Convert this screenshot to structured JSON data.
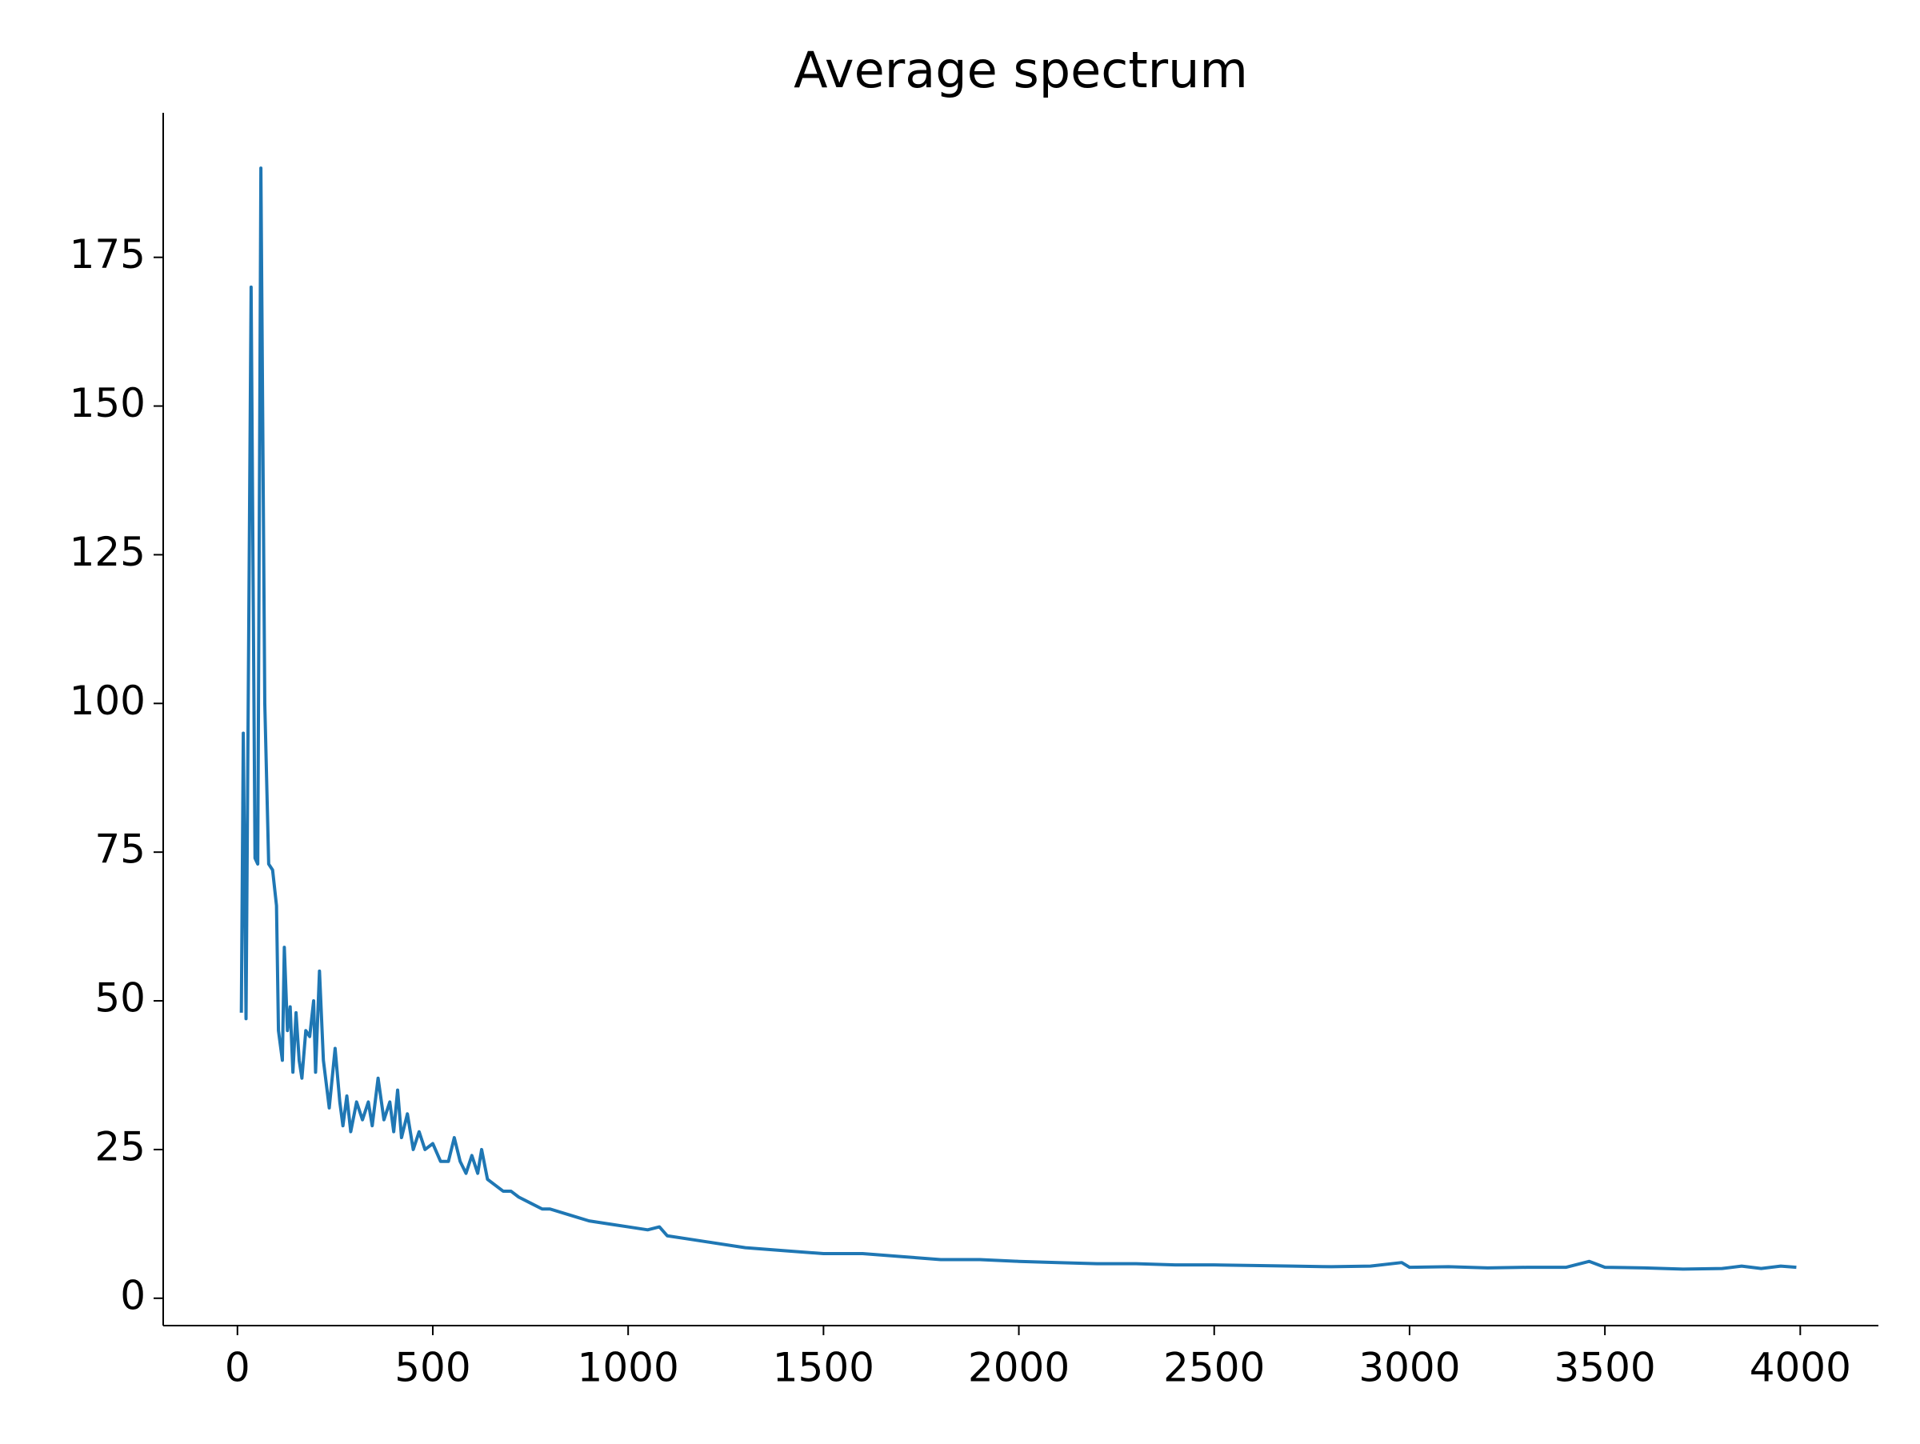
{
  "chart_data": {
    "type": "line",
    "title": "Average spectrum",
    "x": [
      10,
      15,
      22,
      35,
      45,
      52,
      60,
      70,
      80,
      90,
      100,
      105,
      115,
      120,
      128,
      135,
      142,
      150,
      158,
      165,
      175,
      185,
      195,
      200,
      210,
      220,
      235,
      250,
      262,
      270,
      280,
      290,
      305,
      320,
      335,
      345,
      360,
      375,
      390,
      400,
      410,
      420,
      435,
      450,
      465,
      480,
      500,
      520,
      540,
      555,
      570,
      585,
      600,
      615,
      625,
      640,
      660,
      680,
      700,
      720,
      750,
      780,
      800,
      850,
      900,
      950,
      1000,
      1050,
      1080,
      1100,
      1150,
      1200,
      1300,
      1400,
      1500,
      1600,
      1700,
      1800,
      1900,
      2000,
      2100,
      2200,
      2300,
      2400,
      2500,
      2600,
      2700,
      2800,
      2900,
      2980,
      3000,
      3100,
      3200,
      3300,
      3400,
      3460,
      3500,
      3600,
      3700,
      3800,
      3850,
      3900,
      3950,
      3990
    ],
    "series": [
      {
        "name": "Average spectrum",
        "color": "#1f77b4",
        "values": [
          48,
          95,
          47,
          170,
          74,
          73,
          190,
          100,
          73,
          72,
          66,
          45,
          40,
          59,
          45,
          49,
          38,
          48,
          40,
          37,
          45,
          44,
          50,
          38,
          55,
          40,
          32,
          42,
          33,
          29,
          34,
          28,
          33,
          30,
          33,
          29,
          37,
          30,
          33,
          28,
          35,
          27,
          31,
          25,
          28,
          25,
          26,
          23,
          23,
          27,
          23,
          21,
          24,
          21,
          25,
          20,
          19,
          18,
          18,
          17,
          16,
          15,
          15,
          14,
          13,
          12.5,
          12,
          11.5,
          12,
          10.5,
          10,
          9.5,
          8.5,
          8,
          7.5,
          7.5,
          7,
          6.5,
          6.5,
          6.2,
          6,
          5.8,
          5.8,
          5.6,
          5.6,
          5.5,
          5.4,
          5.3,
          5.4,
          6,
          5.2,
          5.3,
          5.1,
          5.2,
          5.2,
          6.2,
          5.2,
          5.1,
          4.9,
          5,
          5.4,
          5,
          5.4,
          5.2
        ]
      }
    ],
    "xlim": [
      -190,
      4200
    ],
    "ylim": [
      -4.6,
      199.3
    ],
    "xticks": [
      0,
      500,
      1000,
      1500,
      2000,
      2500,
      3000,
      3500,
      4000
    ],
    "yticks": [
      0,
      25,
      50,
      75,
      100,
      125,
      150,
      175
    ]
  }
}
